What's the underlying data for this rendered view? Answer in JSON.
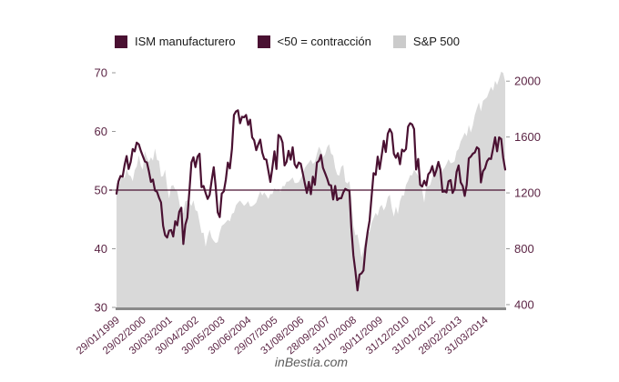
{
  "legend": {
    "items": [
      {
        "label": "ISM manufacturero",
        "swatch_color": "#4a1132"
      },
      {
        "label": "<50 = contracción",
        "swatch_color": "#4a1132"
      },
      {
        "label": "S&P 500",
        "swatch_color": "#cbcbcb"
      }
    ]
  },
  "watermark": "inBestia.com",
  "chart_data": {
    "type": "line",
    "title": "",
    "x_start": "1999-01",
    "x_end": "2015-01",
    "x_tick_labels": [
      {
        "label": "29/01/1999",
        "month": 0
      },
      {
        "label": "29/02/2000",
        "month": 13
      },
      {
        "label": "30/03/2001",
        "month": 26
      },
      {
        "label": "30/04/2002",
        "month": 39
      },
      {
        "label": "30/05/2003",
        "month": 52
      },
      {
        "label": "30/06/2004",
        "month": 65
      },
      {
        "label": "29/07/2005",
        "month": 78
      },
      {
        "label": "31/08/2006",
        "month": 91
      },
      {
        "label": "28/09/2007",
        "month": 104
      },
      {
        "label": "31/10/2008",
        "month": 117
      },
      {
        "label": "30/11/2009",
        "month": 130
      },
      {
        "label": "31/12/2010",
        "month": 143
      },
      {
        "label": "31/01/2012",
        "month": 156
      },
      {
        "label": "28/02/2013",
        "month": 169
      },
      {
        "label": "31/03/2014",
        "month": 182
      }
    ],
    "left_axis": {
      "name": "ISM",
      "ticks": [
        30,
        40,
        50,
        60,
        70
      ],
      "range": [
        30,
        70
      ]
    },
    "right_axis": {
      "name": "S&P 500",
      "ticks": [
        400,
        800,
        1200,
        1600,
        2000
      ],
      "range": [
        380,
        2060
      ]
    },
    "reference_line": {
      "value": 50,
      "meaning": "<50 = contracción",
      "color": "#4a1132"
    },
    "legend_position": "top",
    "grid": false,
    "series": [
      {
        "name": "ISM manufacturero",
        "type": "line",
        "axis": "left",
        "color": "#4a1132",
        "values": [
          49.4,
          51.5,
          52.4,
          52.3,
          54.3,
          55.8,
          53.6,
          54.8,
          57.0,
          56.6,
          58.1,
          57.8,
          56.7,
          55.8,
          54.9,
          54.7,
          53.2,
          51.4,
          51.8,
          49.9,
          49.7,
          48.7,
          47.9,
          43.9,
          42.3,
          41.9,
          43.1,
          43.2,
          42.1,
          44.7,
          44.0,
          46.3,
          47.0,
          40.8,
          44.1,
          45.3,
          49.9,
          54.7,
          55.6,
          53.9,
          55.7,
          56.2,
          50.5,
          50.7,
          49.5,
          48.5,
          49.2,
          51.6,
          53.9,
          50.5,
          46.2,
          45.4,
          49.4,
          49.8,
          51.8,
          54.7,
          53.7,
          57.0,
          62.8,
          63.4,
          63.6,
          61.4,
          62.5,
          62.4,
          62.8,
          61.1,
          62.0,
          59.0,
          58.5,
          56.8,
          57.8,
          58.6,
          56.4,
          55.3,
          55.2,
          53.3,
          51.4,
          53.8,
          56.6,
          53.6,
          59.4,
          59.1,
          58.1,
          54.2,
          54.8,
          56.7,
          55.2,
          57.3,
          54.4,
          53.8,
          54.7,
          54.5,
          52.9,
          51.2,
          49.5,
          51.4,
          49.3,
          52.3,
          50.9,
          54.7,
          55.0,
          56.0,
          53.8,
          52.9,
          52.0,
          50.9,
          50.8,
          48.4,
          50.7,
          48.3,
          48.6,
          48.6,
          49.6,
          50.2,
          50.0,
          49.9,
          43.5,
          38.9,
          36.2,
          32.9,
          35.6,
          35.8,
          36.3,
          40.1,
          42.8,
          44.8,
          48.9,
          52.9,
          52.6,
          55.7,
          53.6,
          55.9,
          58.4,
          56.5,
          59.6,
          60.4,
          59.7,
          56.2,
          55.5,
          56.3,
          54.4,
          56.9,
          56.6,
          57.0,
          60.8,
          61.4,
          61.2,
          60.4,
          53.5,
          55.3,
          50.9,
          50.6,
          51.6,
          50.8,
          52.7,
          53.1,
          54.1,
          52.4,
          53.4,
          54.8,
          53.5,
          49.7,
          49.8,
          49.6,
          51.5,
          51.7,
          49.5,
          50.2,
          53.1,
          54.2,
          51.3,
          50.7,
          49.0,
          50.9,
          55.4,
          55.7,
          56.2,
          56.4,
          57.3,
          57.0,
          51.3,
          53.2,
          53.7,
          54.9,
          55.4,
          55.3,
          57.1,
          59.0,
          56.6,
          59.0,
          58.7,
          55.5,
          53.5
        ]
      },
      {
        "name": "S&P 500",
        "type": "area",
        "axis": "right",
        "color": "#d9d9d9",
        "values": [
          1280,
          1238,
          1286,
          1335,
          1302,
          1373,
          1329,
          1320,
          1283,
          1363,
          1389,
          1469,
          1394,
          1366,
          1499,
          1452,
          1421,
          1455,
          1431,
          1518,
          1437,
          1429,
          1315,
          1320,
          1366,
          1240,
          1160,
          1249,
          1256,
          1224,
          1211,
          1134,
          1041,
          1060,
          1139,
          1148,
          1130,
          1107,
          1147,
          1077,
          1067,
          990,
          912,
          916,
          815,
          886,
          936,
          880,
          856,
          841,
          848,
          917,
          964,
          975,
          990,
          1008,
          996,
          1051,
          1058,
          1112,
          1131,
          1145,
          1126,
          1107,
          1121,
          1141,
          1102,
          1104,
          1115,
          1130,
          1174,
          1212,
          1181,
          1204,
          1181,
          1157,
          1192,
          1191,
          1234,
          1220,
          1229,
          1207,
          1249,
          1248,
          1280,
          1281,
          1295,
          1311,
          1270,
          1270,
          1277,
          1304,
          1336,
          1378,
          1401,
          1418,
          1438,
          1407,
          1421,
          1482,
          1531,
          1503,
          1455,
          1474,
          1527,
          1549,
          1481,
          1468,
          1379,
          1331,
          1323,
          1386,
          1400,
          1280,
          1267,
          1283,
          1166,
          969,
          896,
          903,
          826,
          735,
          798,
          873,
          919,
          919,
          987,
          1021,
          1057,
          1036,
          1096,
          1115,
          1074,
          1104,
          1169,
          1187,
          1089,
          1031,
          1102,
          1049,
          1141,
          1183,
          1181,
          1258,
          1286,
          1327,
          1326,
          1364,
          1345,
          1321,
          1292,
          1219,
          1131,
          1253,
          1247,
          1258,
          1312,
          1366,
          1408,
          1398,
          1310,
          1362,
          1379,
          1407,
          1441,
          1412,
          1416,
          1426,
          1498,
          1515,
          1569,
          1598,
          1631,
          1606,
          1686,
          1633,
          1682,
          1757,
          1806,
          1848,
          1783,
          1859,
          1872,
          1884,
          1924,
          1960,
          1931,
          2003,
          1972,
          2018,
          2068,
          2059,
          1995
        ]
      }
    ],
    "colors": {
      "axis_text": "#5b2444",
      "axis_line": "#8a8a8a",
      "tick_mark": "#9a9a9a",
      "background": "#ffffff"
    }
  }
}
